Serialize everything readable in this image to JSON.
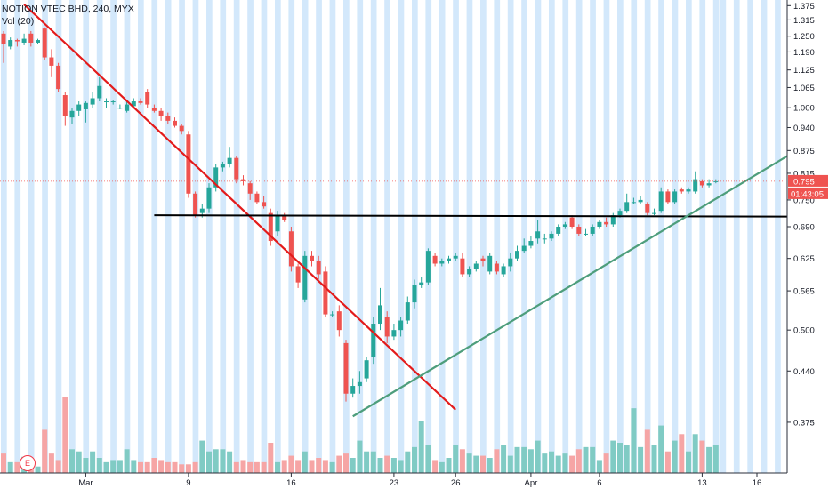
{
  "header": {
    "symbol": "NOTION VTEC BHD, 240, MYX",
    "indicator": "Vol (20)"
  },
  "earnings_marker": "E",
  "price_tag": {
    "value": "0.795",
    "countdown": "01:43:05"
  },
  "colors": {
    "up": "#26a69a",
    "down": "#ef5350",
    "volume_up": "#80cbc4",
    "volume_down": "#f6a5a5",
    "session_band": "#d3e8fb",
    "trend_red": "#e31b1b",
    "trend_green": "#4e9e7c",
    "support": "#000000"
  },
  "chart_data": {
    "type": "candlestick",
    "ylim": [
      0.345,
      1.38
    ],
    "y_scale": "log",
    "y_ticks": [
      "1.375",
      "1.315",
      "1.250",
      "1.190",
      "1.125",
      "1.065",
      "1.000",
      "0.940",
      "0.875",
      "0.815",
      "0.750",
      "0.690",
      "0.625",
      "0.565",
      "0.500",
      "0.440",
      "0.375"
    ],
    "x_ticks": [
      "Mar",
      "9",
      "16",
      "23",
      "26",
      "Apr",
      "6",
      "13",
      "16"
    ],
    "candles": [
      [
        1.26,
        1.22,
        1.27,
        1.15
      ],
      [
        1.21,
        1.235,
        1.245,
        1.2
      ],
      [
        1.235,
        1.23,
        1.24,
        1.21
      ],
      [
        1.225,
        1.24,
        1.26,
        1.215
      ],
      [
        1.26,
        1.225,
        1.27,
        1.21
      ],
      [
        1.225,
        1.235,
        1.24,
        1.22
      ],
      [
        1.28,
        1.17,
        1.285,
        1.16
      ],
      [
        1.17,
        1.14,
        1.2,
        1.1
      ],
      [
        1.14,
        1.06,
        1.15,
        1.05
      ],
      [
        1.04,
        0.975,
        1.05,
        0.945
      ],
      [
        0.97,
        0.99,
        1.0,
        0.95
      ],
      [
        0.99,
        1.01,
        1.02,
        0.975
      ],
      [
        0.995,
        1.015,
        1.02,
        0.955
      ],
      [
        1.01,
        1.03,
        1.05,
        1.0
      ],
      [
        1.03,
        1.07,
        1.1,
        1.02
      ],
      [
        1.02,
        1.02,
        1.03,
        1.0
      ],
      [
        1.02,
        1.02,
        1.025,
        1.01
      ],
      [
        1.0,
        1.0,
        1.01,
        0.995
      ],
      [
        0.99,
        1.01,
        1.02,
        0.985
      ],
      [
        1.005,
        1.02,
        1.03,
        1.0
      ],
      [
        1.02,
        1.015,
        1.03,
        1.01
      ],
      [
        1.05,
        1.01,
        1.06,
        1.0
      ],
      [
        1.0,
        0.99,
        1.01,
        0.985
      ],
      [
        0.99,
        0.975,
        1.0,
        0.96
      ],
      [
        0.975,
        0.96,
        0.985,
        0.95
      ],
      [
        0.96,
        0.945,
        0.97,
        0.94
      ],
      [
        0.945,
        0.93,
        0.95,
        0.92
      ],
      [
        0.92,
        0.765,
        0.93,
        0.755
      ],
      [
        0.765,
        0.715,
        0.77,
        0.71
      ],
      [
        0.72,
        0.73,
        0.74,
        0.71
      ],
      [
        0.73,
        0.78,
        0.79,
        0.72
      ],
      [
        0.78,
        0.83,
        0.84,
        0.77
      ],
      [
        0.83,
        0.84,
        0.845,
        0.82
      ],
      [
        0.84,
        0.855,
        0.885,
        0.83
      ],
      [
        0.855,
        0.8,
        0.86,
        0.79
      ],
      [
        0.8,
        0.795,
        0.81,
        0.785
      ],
      [
        0.79,
        0.765,
        0.795,
        0.75
      ],
      [
        0.765,
        0.745,
        0.77,
        0.74
      ],
      [
        0.745,
        0.735,
        0.76,
        0.73
      ],
      [
        0.72,
        0.66,
        0.73,
        0.65
      ],
      [
        0.68,
        0.715,
        0.725,
        0.67
      ],
      [
        0.715,
        0.705,
        0.72,
        0.7
      ],
      [
        0.68,
        0.61,
        0.69,
        0.6
      ],
      [
        0.61,
        0.58,
        0.615,
        0.57
      ],
      [
        0.55,
        0.63,
        0.64,
        0.545
      ],
      [
        0.63,
        0.62,
        0.64,
        0.61
      ],
      [
        0.62,
        0.595,
        0.63,
        0.585
      ],
      [
        0.6,
        0.525,
        0.61,
        0.52
      ],
      [
        0.525,
        0.525,
        0.53,
        0.52
      ],
      [
        0.53,
        0.5,
        0.54,
        0.49
      ],
      [
        0.48,
        0.41,
        0.485,
        0.4
      ],
      [
        0.41,
        0.42,
        0.43,
        0.405
      ],
      [
        0.42,
        0.425,
        0.44,
        0.41
      ],
      [
        0.43,
        0.455,
        0.46,
        0.425
      ],
      [
        0.46,
        0.51,
        0.52,
        0.45
      ],
      [
        0.51,
        0.54,
        0.57,
        0.5
      ],
      [
        0.52,
        0.49,
        0.53,
        0.48
      ],
      [
        0.49,
        0.5,
        0.51,
        0.485
      ],
      [
        0.5,
        0.515,
        0.52,
        0.49
      ],
      [
        0.515,
        0.545,
        0.555,
        0.51
      ],
      [
        0.545,
        0.575,
        0.585,
        0.535
      ],
      [
        0.575,
        0.58,
        0.59,
        0.57
      ],
      [
        0.58,
        0.64,
        0.645,
        0.575
      ],
      [
        0.63,
        0.615,
        0.635,
        0.61
      ],
      [
        0.615,
        0.62,
        0.625,
        0.61
      ],
      [
        0.62,
        0.625,
        0.63,
        0.615
      ],
      [
        0.625,
        0.63,
        0.635,
        0.62
      ],
      [
        0.625,
        0.595,
        0.635,
        0.59
      ],
      [
        0.595,
        0.605,
        0.61,
        0.59
      ],
      [
        0.605,
        0.615,
        0.62,
        0.6
      ],
      [
        0.625,
        0.62,
        0.63,
        0.61
      ],
      [
        0.6,
        0.63,
        0.635,
        0.595
      ],
      [
        0.615,
        0.6,
        0.62,
        0.595
      ],
      [
        0.595,
        0.61,
        0.615,
        0.59
      ],
      [
        0.61,
        0.625,
        0.635,
        0.6
      ],
      [
        0.625,
        0.64,
        0.65,
        0.62
      ],
      [
        0.64,
        0.65,
        0.665,
        0.635
      ],
      [
        0.65,
        0.66,
        0.67,
        0.645
      ],
      [
        0.665,
        0.68,
        0.705,
        0.655
      ],
      [
        0.665,
        0.665,
        0.675,
        0.655
      ],
      [
        0.665,
        0.675,
        0.68,
        0.66
      ],
      [
        0.675,
        0.69,
        0.695,
        0.67
      ],
      [
        0.69,
        0.695,
        0.7,
        0.685
      ],
      [
        0.71,
        0.69,
        0.715,
        0.685
      ],
      [
        0.69,
        0.675,
        0.695,
        0.67
      ],
      [
        0.675,
        0.675,
        0.685,
        0.67
      ],
      [
        0.675,
        0.69,
        0.695,
        0.67
      ],
      [
        0.69,
        0.7,
        0.705,
        0.685
      ],
      [
        0.7,
        0.695,
        0.71,
        0.69
      ],
      [
        0.695,
        0.715,
        0.72,
        0.69
      ],
      [
        0.715,
        0.725,
        0.73,
        0.71
      ],
      [
        0.725,
        0.745,
        0.765,
        0.72
      ],
      [
        0.745,
        0.745,
        0.755,
        0.74
      ],
      [
        0.745,
        0.75,
        0.76,
        0.74
      ],
      [
        0.74,
        0.72,
        0.745,
        0.715
      ],
      [
        0.72,
        0.72,
        0.73,
        0.715
      ],
      [
        0.725,
        0.77,
        0.78,
        0.72
      ],
      [
        0.77,
        0.745,
        0.775,
        0.74
      ],
      [
        0.745,
        0.77,
        0.775,
        0.74
      ],
      [
        0.775,
        0.77,
        0.78,
        0.765
      ],
      [
        0.77,
        0.775,
        0.78,
        0.765
      ],
      [
        0.77,
        0.8,
        0.82,
        0.765
      ],
      [
        0.795,
        0.785,
        0.8,
        0.78
      ],
      [
        0.785,
        0.79,
        0.8,
        0.78
      ],
      [
        0.795,
        0.795,
        0.8,
        0.79
      ]
    ],
    "volumes": [
      18,
      10,
      10,
      15,
      12,
      6,
      40,
      18,
      12,
      70,
      22,
      20,
      14,
      20,
      14,
      10,
      12,
      12,
      22,
      12,
      10,
      10,
      14,
      12,
      10,
      10,
      8,
      8,
      10,
      30,
      20,
      22,
      22,
      20,
      10,
      12,
      10,
      10,
      10,
      28,
      10,
      12,
      16,
      12,
      20,
      12,
      14,
      12,
      10,
      16,
      18,
      14,
      30,
      20,
      20,
      14,
      16,
      14,
      12,
      20,
      24,
      48,
      26,
      12,
      10,
      14,
      26,
      22,
      18,
      16,
      16,
      14,
      22,
      26,
      16,
      24,
      24,
      22,
      30,
      18,
      20,
      16,
      18,
      16,
      22,
      24,
      24,
      12,
      18,
      30,
      28,
      26,
      60,
      24,
      40,
      26,
      44,
      20,
      30,
      36,
      20,
      36,
      30,
      24,
      26
    ],
    "trendlines": [
      {
        "name": "resistance",
        "from": [
          3,
          1.38
        ],
        "to": [
          66,
          0.39
        ]
      },
      {
        "name": "support",
        "from": [
          22,
          0.715
        ],
        "to": [
          130,
          0.712
        ]
      },
      {
        "name": "uptrend",
        "from": [
          51,
          0.382
        ],
        "to": [
          126,
          0.86
        ]
      }
    ]
  }
}
